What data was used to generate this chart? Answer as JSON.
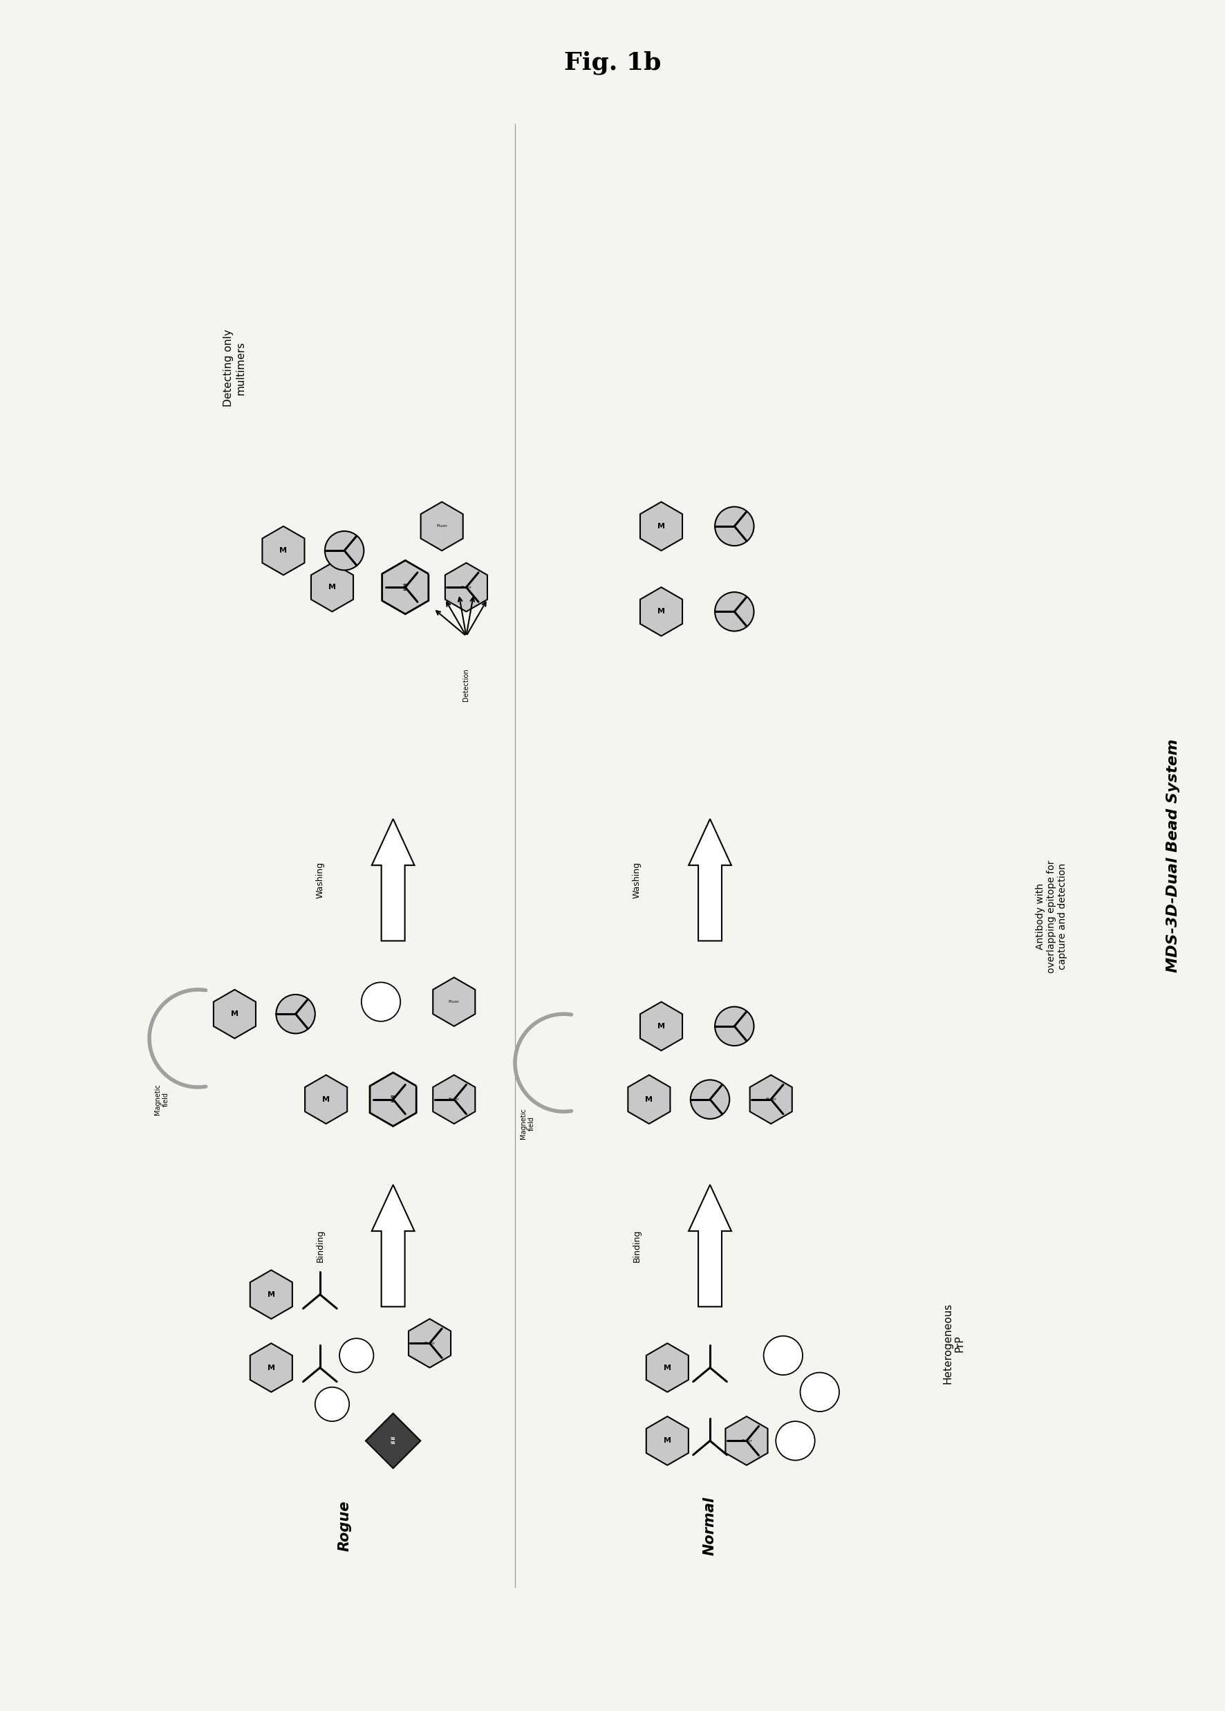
{
  "title": "Fig. 1b",
  "bg_color": "#f5f5f0",
  "fig_width": 17.72,
  "fig_height": 24.74,
  "main_label": "MDS-3D-Dual Bead System",
  "col1_header": "Heterogeneous\nPrP",
  "col2_header": "Antibody with\noverlapping epitope for\ncapture and detection",
  "col3_header": "Detecting only\nmultimers",
  "row1_label": "Normal",
  "row2_label": "Rogue",
  "binding_label": "Binding",
  "washing_label": "Washing",
  "magnetic_label": "Magnetic\nfield",
  "detection_label": "Detection",
  "gray_light": "#c8c8c8",
  "gray_dark": "#606060",
  "gray_mid": "#a0a0a0"
}
